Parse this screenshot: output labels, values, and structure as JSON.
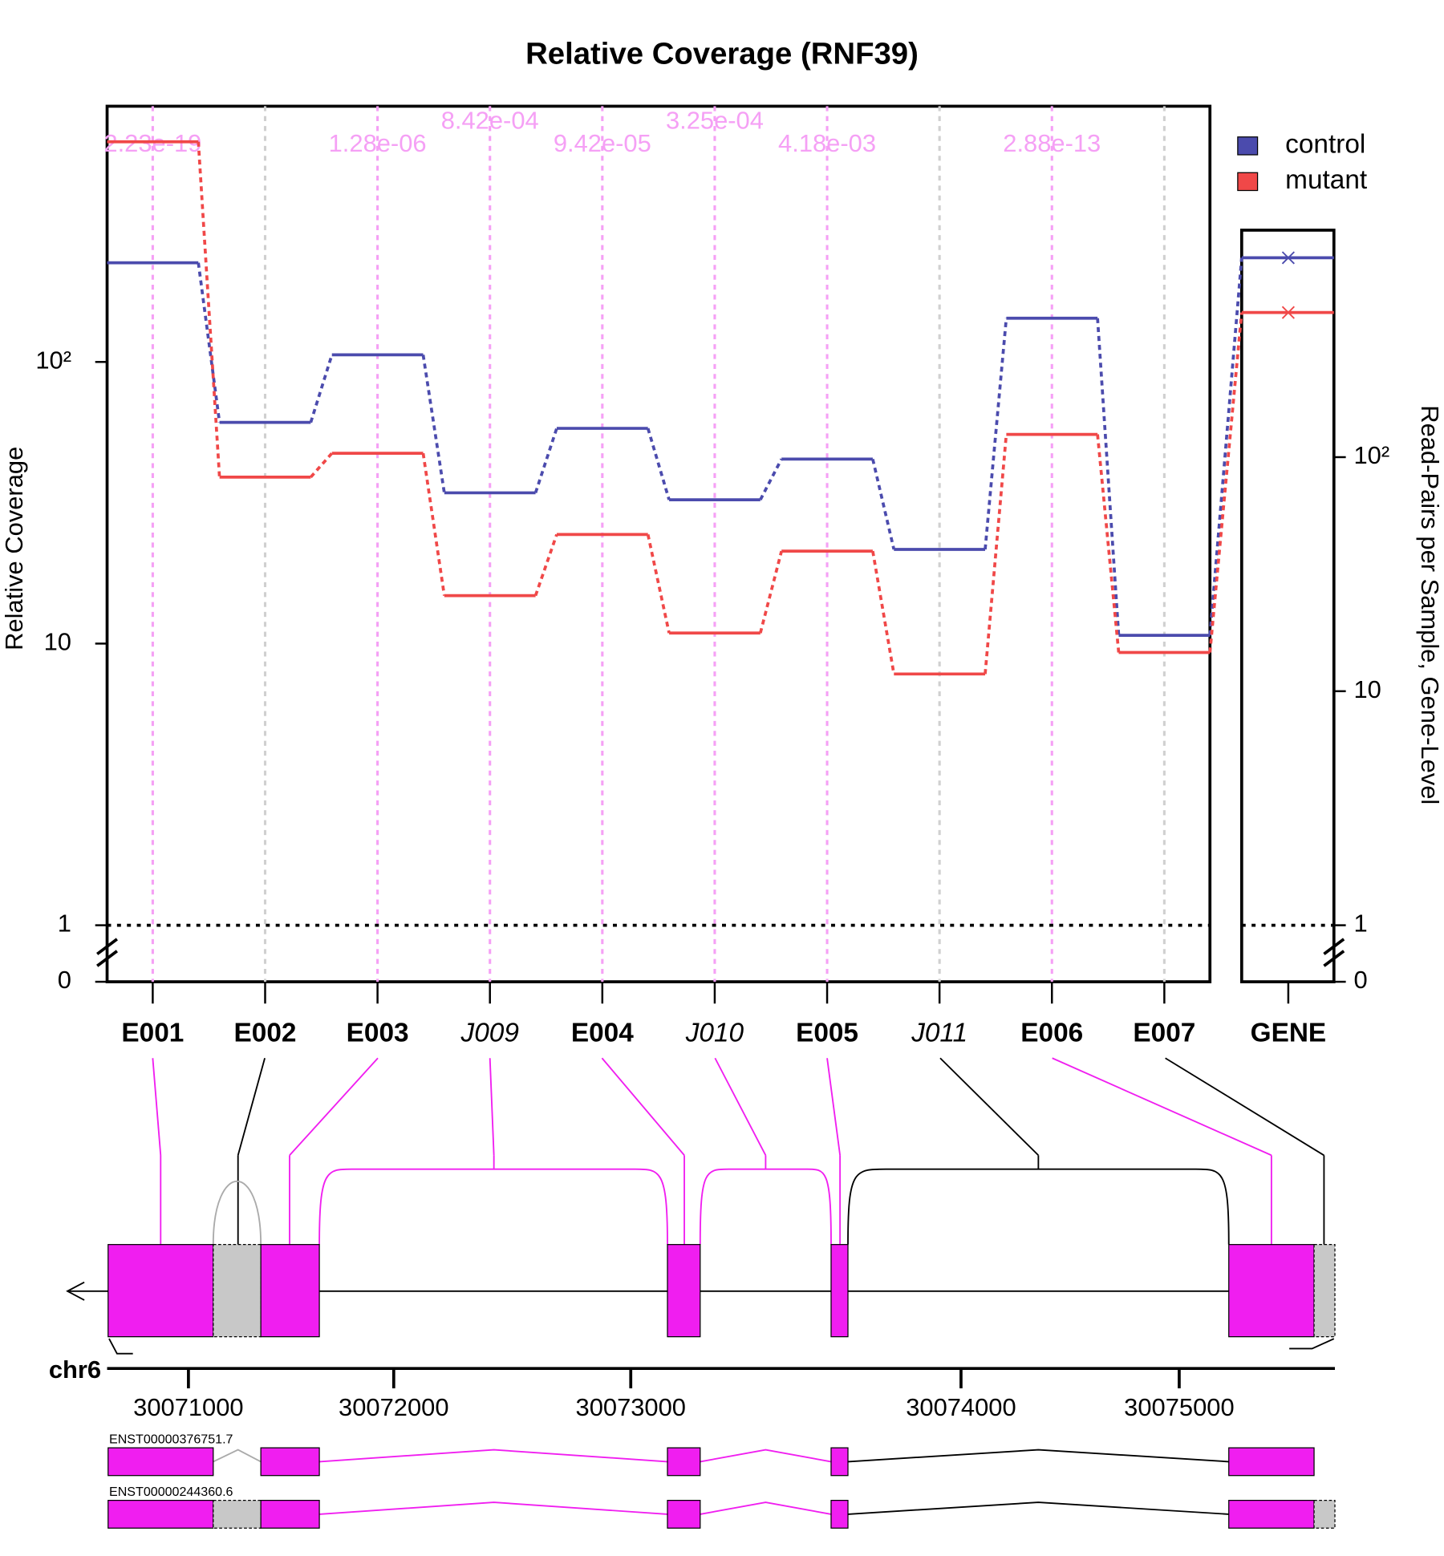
{
  "chart_data": {
    "type": "line",
    "title": "Relative Coverage (RNF39)",
    "ylabel": "Relative Coverage",
    "y2label": "Read-Pairs per Sample, Gene-Level",
    "categories": [
      "E001",
      "E002",
      "E003",
      "J009",
      "E004",
      "J010",
      "E005",
      "J011",
      "E006",
      "E007"
    ],
    "is_junction": [
      false,
      false,
      false,
      true,
      false,
      true,
      false,
      true,
      false,
      false
    ],
    "annotations": [
      "2.23e-19",
      null,
      "1.28e-06",
      "8.42e-04",
      "9.42e-05",
      "3.25e-04",
      "4.18e-03",
      null,
      "2.88e-13",
      null
    ],
    "gene_category": "GENE",
    "series": [
      {
        "name": "control",
        "color": "#4b4bad",
        "values": [
          225,
          61,
          106,
          34.3,
          58.1,
          32.4,
          45.2,
          21.6,
          143,
          10.7
        ],
        "gene_value": 711
      },
      {
        "name": "mutant",
        "color": "#f04848",
        "values": [
          605,
          39,
          47.4,
          14.8,
          24.4,
          10.9,
          21.3,
          7.8,
          55.3,
          9.3
        ],
        "gene_value": 415
      }
    ],
    "log_scale": true,
    "ylim": [
      0,
      809
    ],
    "yticks": [
      0,
      1,
      10,
      {
        "value": 100,
        "label": "10²"
      }
    ],
    "y2lim": [
      0,
      933
    ],
    "y2ticks": [
      0,
      1,
      10,
      {
        "value": 100,
        "label": "10²"
      }
    ],
    "hline": 1,
    "genome": {
      "chromosome": "chr6",
      "ticks": [
        30071000,
        30072000,
        30073000,
        30074000,
        30075000
      ],
      "transcripts": [
        "ENST00000376751.7",
        "ENST00000244360.6"
      ]
    }
  }
}
